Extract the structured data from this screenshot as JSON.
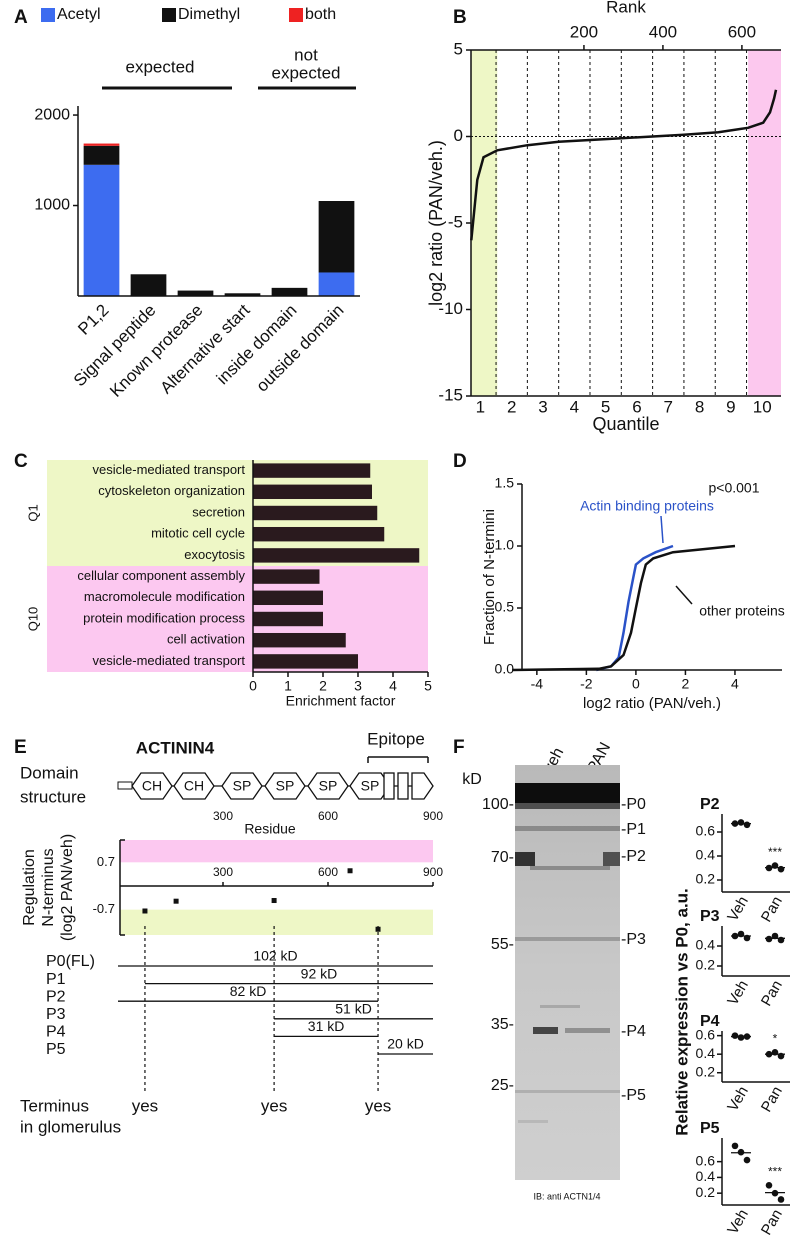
{
  "chart_data": [
    {
      "type": "bar",
      "panel": "A",
      "legend": "top",
      "categories": [
        "P1,2",
        "Signal peptide",
        "Known protease",
        "Alternative start",
        "inside domain",
        "outside domain"
      ],
      "series": [
        {
          "name": "Acetyl",
          "color": "#3d6cf0",
          "values": [
            1450,
            0,
            0,
            0,
            0,
            260
          ]
        },
        {
          "name": "Dimethyl",
          "color": "#111111",
          "values": [
            210,
            240,
            60,
            30,
            90,
            790
          ]
        },
        {
          "name": "both",
          "color": "#ee2222",
          "values": [
            25,
            0,
            0,
            0,
            0,
            0
          ]
        }
      ],
      "ylim": [
        0,
        2100
      ],
      "yticks": [
        1000,
        2000
      ],
      "annotations": [
        {
          "text": "expected"
        },
        {
          "text": [
            "not",
            "expected"
          ]
        }
      ]
    },
    {
      "type": "line",
      "panel": "B",
      "x": [
        0.71,
        0.9,
        1.1,
        1.54,
        2.5,
        3.5,
        4.5,
        5.5,
        6.5,
        7.5,
        8.6,
        9.55,
        10.03,
        10.25,
        10.38,
        10.44
      ],
      "series": [
        {
          "color": "#111111",
          "values": [
            -6,
            -2.5,
            -1.2,
            -0.8,
            -0.5,
            -0.3,
            -0.2,
            -0.1,
            0,
            0.1,
            0.25,
            0.5,
            0.8,
            1.4,
            2.2,
            2.7
          ]
        }
      ],
      "xlim": [
        0.7,
        10.6
      ],
      "xticks": [
        1,
        2,
        3,
        4,
        5,
        6,
        7,
        8,
        9,
        10
      ],
      "xlabel": "Quantile",
      "x2lim": [
        -86,
        699
      ],
      "x2ticks": [
        200,
        400,
        600
      ],
      "x2label": "Rank",
      "ylim": [
        -15,
        5
      ],
      "yticks": [
        5,
        0,
        -5,
        -10,
        -15
      ],
      "ylabel": "log2 ratio (PAN/veh.)",
      "highlights": [
        {
          "from": 0.7,
          "to": 1.54,
          "color": "#eef7c6"
        },
        {
          "from": 9.55,
          "to": 10.6,
          "color": "#fcc8ee"
        }
      ],
      "dividers": [
        1.5,
        2.5,
        3.5,
        4.5,
        5.5,
        6.5,
        7.5,
        8.5,
        9.5
      ],
      "ref_line": 0
    },
    {
      "type": "bar",
      "orientation": "horizontal",
      "panel": "C",
      "color": "#2a1a1e",
      "groups": [
        {
          "label": "Q1",
          "color": "#eef7c6",
          "categories": [
            "vesicle-mediated transport",
            "cytoskeleton organization",
            "secretion",
            "mitotic cell cycle",
            "exocytosis"
          ],
          "values": [
            3.35,
            3.4,
            3.55,
            3.75,
            4.75
          ]
        },
        {
          "label": "Q10",
          "color": "#fcc8f0",
          "categories": [
            "cellular component assembly",
            "macromolecule modification",
            "protein modification process",
            "cell activation",
            "vesicle-mediated transport"
          ],
          "values": [
            1.9,
            2.0,
            2.0,
            2.65,
            3.0
          ]
        }
      ],
      "xlim": [
        0,
        5
      ],
      "xticks": [
        0,
        1,
        2,
        3,
        4,
        5
      ],
      "xlabel": "Enrichment factor"
    },
    {
      "type": "line",
      "panel": "D",
      "series": [
        {
          "name": "Actin binding proteins",
          "color": "#2a52c8",
          "x": [
            -1.6,
            -1,
            -0.7,
            -0.5,
            -0.3,
            -0.1,
            0,
            0.3,
            0.8,
            1.5
          ],
          "values": [
            0,
            0.03,
            0.1,
            0.3,
            0.55,
            0.75,
            0.85,
            0.9,
            0.95,
            1.0
          ]
        },
        {
          "name": "other proteins",
          "color": "#111111",
          "x": [
            -5,
            -1.5,
            -1,
            -0.5,
            -0.2,
            0,
            0.2,
            0.4,
            0.7,
            1.5,
            4
          ],
          "values": [
            0,
            0.01,
            0.03,
            0.12,
            0.3,
            0.5,
            0.7,
            0.85,
            0.9,
            0.95,
            1.0
          ]
        }
      ],
      "xlim": [
        -4.6,
        5.9
      ],
      "xticks": [
        -4,
        -2,
        0,
        2,
        4
      ],
      "xlabel": "log2 ratio  (PAN/veh.)",
      "ylim": [
        0,
        1.5
      ],
      "yticks": [
        {
          "value": 0,
          "label": "0.0"
        },
        0.5,
        {
          "value": 1,
          "label": "1.0"
        },
        1.5
      ],
      "ylabel": "Fraction of N-termini",
      "annotations": [
        "p<0.001"
      ]
    },
    {
      "type": "scatter",
      "x": [
        77,
        166,
        446,
        663,
        743
      ],
      "values": [
        -0.74,
        -0.45,
        -0.43,
        0.45,
        -1.28
      ],
      "color": "#111111",
      "xlim": [
        0,
        900
      ],
      "xticks": [
        300,
        600,
        900
      ],
      "ylim": [
        -1.45,
        1.36
      ],
      "yticks": [
        0.7,
        -0.7
      ],
      "ylabel": [
        "Regulation",
        "N-terminus",
        "(log2 PAN/veh)"
      ],
      "bands": [
        {
          "from": 0.7,
          "to": 1.36,
          "color": "#fcc8f0"
        },
        {
          "from": -1.45,
          "to": -0.7,
          "color": "#eef7c6"
        }
      ]
    },
    {
      "type": "dot",
      "title": "P2",
      "categories": [
        "Veh",
        "Pan"
      ],
      "values": [
        [
          0.67,
          0.68,
          0.66
        ],
        [
          0.3,
          0.32,
          0.29
        ]
      ],
      "ylim": [
        0.1,
        0.75
      ],
      "yticks": [
        0.2,
        0.4,
        0.6
      ],
      "significance": "***"
    },
    {
      "type": "dot",
      "title": "P3",
      "categories": [
        "Veh",
        "Pan"
      ],
      "values": [
        [
          0.5,
          0.52,
          0.48
        ],
        [
          0.47,
          0.5,
          0.46
        ]
      ],
      "ylim": [
        0.1,
        0.6
      ],
      "yticks": [
        0.2,
        0.4
      ]
    },
    {
      "type": "dot",
      "title": "P4",
      "categories": [
        "Veh",
        "Pan"
      ],
      "values": [
        [
          0.6,
          0.58,
          0.59
        ],
        [
          0.4,
          0.42,
          0.38
        ]
      ],
      "ylim": [
        0.1,
        0.65
      ],
      "yticks": [
        0.2,
        0.4,
        0.6
      ],
      "significance": "*"
    },
    {
      "type": "dot",
      "title": "P5",
      "categories": [
        "Veh",
        "Pan"
      ],
      "values": [
        [
          0.8,
          0.72,
          0.62
        ],
        [
          0.3,
          0.2,
          0.12
        ]
      ],
      "ylim": [
        0.05,
        0.9
      ],
      "yticks": [
        0.2,
        0.4,
        0.6
      ],
      "significance": "***"
    }
  ],
  "actinin4": {
    "panel": "E",
    "title": "ACTININ4",
    "epitope": "Epitope",
    "domain_label": [
      "Domain",
      "structure"
    ],
    "domains": [
      "CH",
      "CH",
      "SP",
      "SP",
      "SP",
      "SP"
    ],
    "residue_ticks": [
      300,
      600,
      900
    ],
    "residue_label": "Residue",
    "fragments": [
      {
        "name": "P0(FL)",
        "size": "102 kD",
        "start": 0,
        "end": 900
      },
      {
        "name": "P1",
        "size": "92 kD",
        "start": 77,
        "end": 900
      },
      {
        "name": "P2",
        "size": "82 kD",
        "start": 0,
        "end": 743
      },
      {
        "name": "P3",
        "size": "51 kD",
        "start": 446,
        "end": 900
      },
      {
        "name": "P4",
        "size": "31 kD",
        "start": 446,
        "end": 743
      },
      {
        "name": "P5",
        "size": "20 kD",
        "start": 743,
        "end": 900
      }
    ],
    "cleavage_sites": [
      77,
      446,
      743
    ],
    "terminus_label": [
      "Terminus",
      "in glomerulus"
    ],
    "terminus": [
      "yes",
      "yes",
      "yes"
    ]
  },
  "blot": {
    "panel": "F",
    "unit": "kD",
    "lanes": [
      "veh",
      "PAN"
    ],
    "markers": [
      "100-",
      "70-",
      "55-",
      "35-",
      "25-"
    ],
    "bands": [
      "-P0",
      "-P1",
      "-P2",
      "-P3",
      "-P4",
      "-P5"
    ],
    "caption": "IB: anti ACTN1/4",
    "quant_ylabel": "Relative expression vs P0, a.u."
  }
}
